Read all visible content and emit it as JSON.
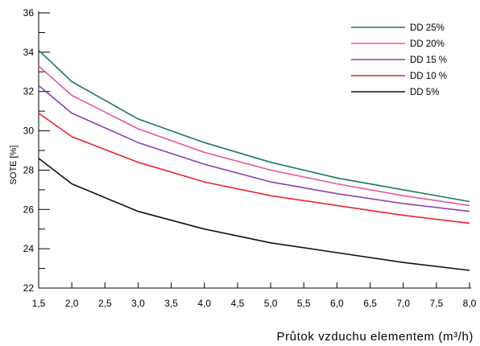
{
  "chart_data": {
    "type": "line",
    "title": "",
    "xlabel": "Průtok vzduchu  elementem (m³/h)",
    "ylabel": "SOTE [%]",
    "xlim": [
      1.5,
      8.0
    ],
    "ylim": [
      22,
      36
    ],
    "x_ticks": [
      "1,5",
      "2,0",
      "2,5",
      "3,0",
      "3,5",
      "4,0",
      "4,5",
      "5,0",
      "5,5",
      "6,0",
      "6,5",
      "7,0",
      "7,5",
      "8,0"
    ],
    "x_tick_values": [
      1.5,
      2.0,
      2.5,
      3.0,
      3.5,
      4.0,
      4.5,
      5.0,
      5.5,
      6.0,
      6.5,
      7.0,
      7.5,
      8.0
    ],
    "y_ticks": [
      "22",
      "24",
      "26",
      "28",
      "30",
      "32",
      "34",
      "36"
    ],
    "y_tick_values": [
      22,
      24,
      26,
      28,
      30,
      32,
      34,
      36
    ],
    "grid": false,
    "legend_position": "top-right",
    "x": [
      1.5,
      2.0,
      3.0,
      4.0,
      5.0,
      6.0,
      7.0,
      8.0
    ],
    "series": [
      {
        "name": "DD 25%",
        "color": "#1e7a55",
        "values": [
          34.1,
          32.5,
          30.6,
          29.4,
          28.4,
          27.6,
          27.0,
          26.4
        ]
      },
      {
        "name": "DD 20%",
        "color": "#e8559a",
        "values": [
          33.3,
          31.8,
          30.1,
          28.9,
          28.0,
          27.3,
          26.7,
          26.2
        ]
      },
      {
        "name": "DD 15 %",
        "color": "#8a3fb0",
        "values": [
          32.3,
          30.9,
          29.4,
          28.3,
          27.4,
          26.8,
          26.3,
          25.9
        ]
      },
      {
        "name": "DD 10 %",
        "color": "#e8262e",
        "values": [
          30.9,
          29.7,
          28.4,
          27.4,
          26.7,
          26.2,
          25.7,
          25.3
        ]
      },
      {
        "name": "DD 5%",
        "color": "#111111",
        "values": [
          28.6,
          27.3,
          25.9,
          25.0,
          24.3,
          23.8,
          23.3,
          22.9
        ]
      }
    ]
  }
}
